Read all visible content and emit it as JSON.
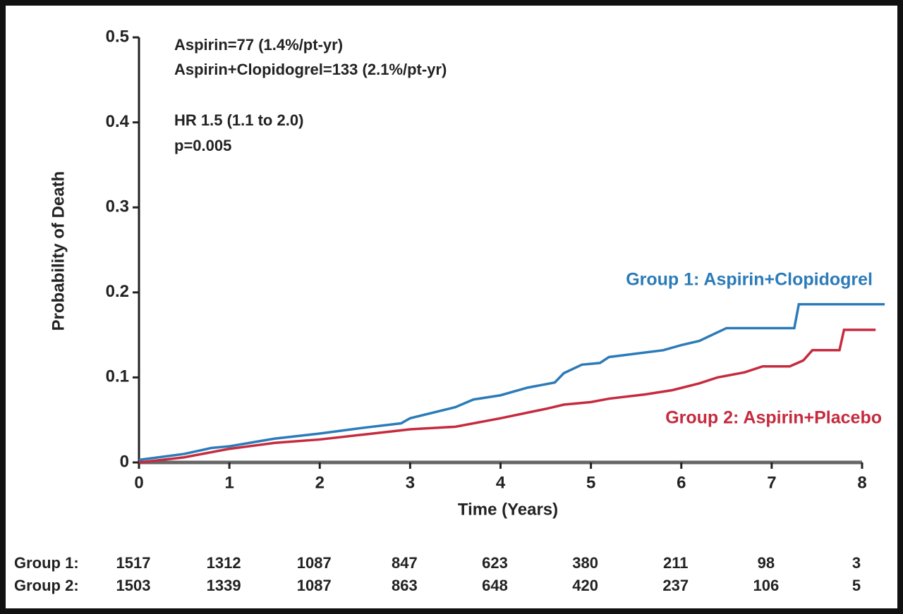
{
  "chart_data": {
    "type": "line",
    "annotations": [
      "Aspirin=77 (1.4%/pt-yr)",
      "Aspirin+Clopidogrel=133 (2.1%/pt-yr)",
      "HR 1.5 (1.1 to 2.0)",
      "p=0.005"
    ],
    "x_label": "Time (Years)",
    "y_label": "Probability of Death",
    "xlim": [
      0,
      8
    ],
    "xticks": [
      0,
      1,
      2,
      3,
      4,
      5,
      6,
      7,
      8
    ],
    "ylim": [
      0,
      0.5
    ],
    "yticks": [
      0,
      0.1,
      0.2,
      0.3,
      0.4,
      0.5
    ],
    "series": [
      {
        "name": "Group 1: Aspirin+Clopidogrel",
        "color": "#2b7bb9",
        "x": [
          0,
          0.5,
          0.8,
          1,
          1.5,
          2,
          2.5,
          2.9,
          3,
          3.5,
          3.7,
          4,
          4.3,
          4.6,
          4.7,
          4.9,
          5.1,
          5.2,
          5.5,
          5.8,
          6,
          6.2,
          6.5,
          7.25,
          7.3,
          8.25
        ],
        "values": [
          0.003,
          0.01,
          0.017,
          0.019,
          0.028,
          0.034,
          0.041,
          0.046,
          0.052,
          0.065,
          0.074,
          0.079,
          0.088,
          0.094,
          0.105,
          0.115,
          0.117,
          0.124,
          0.128,
          0.132,
          0.138,
          0.143,
          0.158,
          0.158,
          0.186,
          0.186
        ]
      },
      {
        "name": "Group 2: Aspirin+Placebo",
        "color": "#c62a3e",
        "x": [
          0,
          0.5,
          1,
          1.5,
          2,
          2.5,
          3,
          3.5,
          4,
          4.5,
          4.7,
          5,
          5.2,
          5.6,
          5.9,
          6.2,
          6.4,
          6.7,
          6.9,
          7.2,
          7.35,
          7.45,
          7.75,
          7.8,
          8.15
        ],
        "values": [
          0,
          0.006,
          0.016,
          0.023,
          0.027,
          0.033,
          0.039,
          0.042,
          0.052,
          0.063,
          0.068,
          0.071,
          0.075,
          0.08,
          0.085,
          0.093,
          0.1,
          0.106,
          0.113,
          0.113,
          0.12,
          0.132,
          0.132,
          0.156,
          0.156
        ]
      }
    ],
    "risk_table": {
      "rows": [
        {
          "label": "Group 1:",
          "values": [
            1517,
            1312,
            1087,
            847,
            623,
            380,
            211,
            98,
            3
          ]
        },
        {
          "label": "Group 2:",
          "values": [
            1503,
            1339,
            1087,
            863,
            648,
            420,
            237,
            106,
            5
          ]
        }
      ]
    }
  }
}
